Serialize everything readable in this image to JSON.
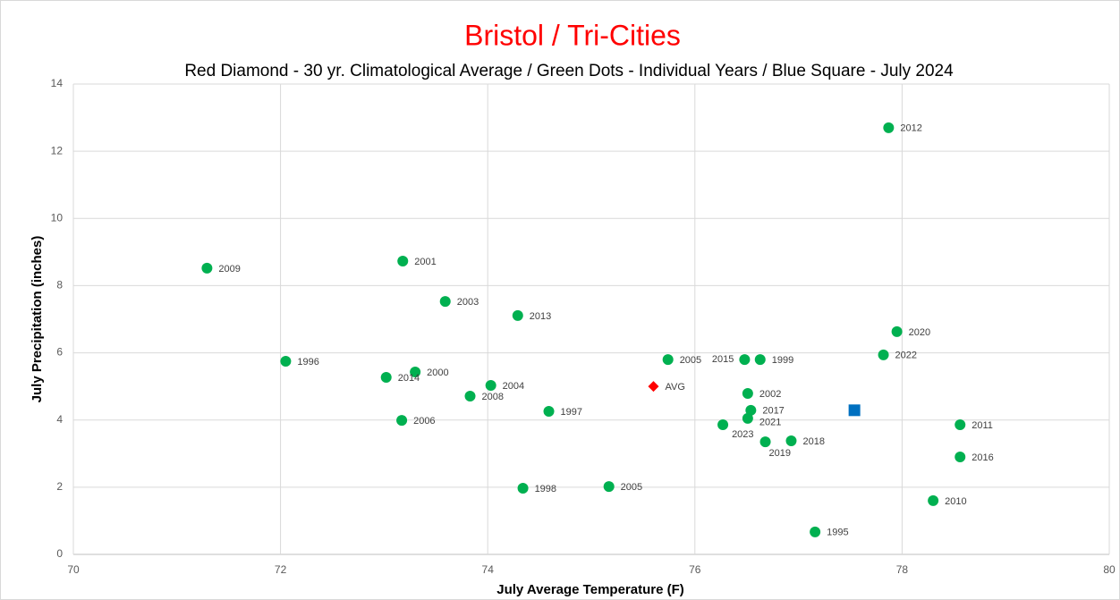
{
  "chart_data": {
    "type": "scatter",
    "title": "Bristol / Tri-Cities",
    "subtitle": "Red Diamond - 30 yr. Climatological Average / Green Dots - Individual Years / Blue Square - July 2024",
    "x_label": "July Average Temperature (F)",
    "y_label": "July Precipitation (inches)",
    "xlim": [
      70,
      80
    ],
    "xticks": [
      70,
      72,
      74,
      76,
      78,
      80
    ],
    "ylim": [
      0,
      14
    ],
    "yticks": [
      0,
      2,
      4,
      6,
      8,
      10,
      12,
      14
    ],
    "grid": true,
    "series": [
      {
        "color": "#00b050",
        "marker": "circle",
        "labels": [
          "2012",
          "2009",
          "2001",
          "2003",
          "2013",
          "2020",
          "2022",
          "1996",
          "2005",
          "2015",
          "1999",
          "2000",
          "2014",
          "2004",
          "2002",
          "2008",
          "2017",
          "1997",
          "2006",
          "2021",
          "2023",
          "2011",
          "2018",
          "2019",
          "2016",
          "1998",
          "2005",
          "2010",
          "1995"
        ],
        "x": [
          77.87,
          71.29,
          73.18,
          73.59,
          74.29,
          77.95,
          77.82,
          72.05,
          75.74,
          76.48,
          76.63,
          73.3,
          73.02,
          74.03,
          76.51,
          73.83,
          76.54,
          74.59,
          73.17,
          76.51,
          76.27,
          78.56,
          76.93,
          76.68,
          78.56,
          74.34,
          75.17,
          78.3,
          77.16
        ],
        "values": [
          12.7,
          8.52,
          8.73,
          7.53,
          7.11,
          6.63,
          5.94,
          5.75,
          5.8,
          5.8,
          5.8,
          5.43,
          5.27,
          5.03,
          4.79,
          4.71,
          4.29,
          4.26,
          3.99,
          4.05,
          3.86,
          3.86,
          3.38,
          3.35,
          2.9,
          1.97,
          2.02,
          1.6,
          0.67
        ]
      },
      {
        "color": "#ff0000",
        "marker": "diamond",
        "labels": [
          "AVG"
        ],
        "x": [
          75.6
        ],
        "values": [
          5.0
        ]
      },
      {
        "color": "#0070c0",
        "marker": "square",
        "x": [
          77.54
        ],
        "values": [
          4.29
        ]
      }
    ]
  }
}
